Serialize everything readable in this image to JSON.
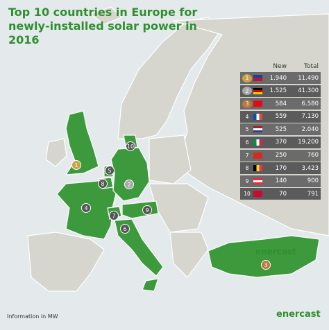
{
  "header": {
    "title": "Top 10 countries in Europe for newly-installed solar power in 2016"
  },
  "table": {
    "columns": [
      "New",
      "Total"
    ],
    "rows": [
      {
        "rank": "1",
        "new": "1.940",
        "total": "11.490"
      },
      {
        "rank": "2",
        "new": "1.525",
        "total": "41.300"
      },
      {
        "rank": "3",
        "new": "584",
        "total": "6.580"
      },
      {
        "rank": "4",
        "new": "559",
        "total": "7.130"
      },
      {
        "rank": "5",
        "new": "525",
        "total": "2.040"
      },
      {
        "rank": "6",
        "new": "370",
        "total": "19.200"
      },
      {
        "rank": "7",
        "new": "250",
        "total": "760"
      },
      {
        "rank": "8",
        "new": "170",
        "total": "3.423"
      },
      {
        "rank": "9",
        "new": "140",
        "total": "900"
      },
      {
        "rank": "10",
        "new": "70",
        "total": "791"
      }
    ]
  },
  "footer": {
    "note": "Information in MW"
  },
  "branding": [
    "enercast",
    "enercast"
  ]
}
